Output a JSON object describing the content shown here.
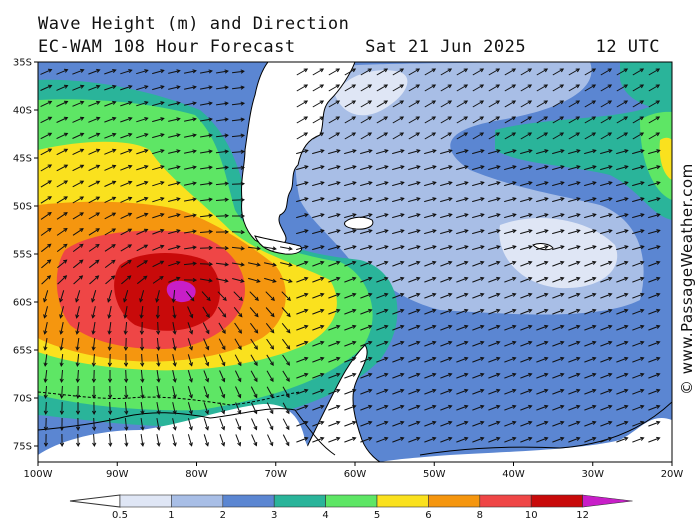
{
  "title": {
    "line1": "Wave Height (m) and Direction",
    "model": "EC-WAM 108 Hour Forecast",
    "date": "Sat 21 Jun 2025",
    "time": "12 UTC"
  },
  "credit": "© www.PassageWeather.com",
  "axes": {
    "lat_labels": [
      "35S",
      "40S",
      "45S",
      "50S",
      "55S",
      "60S",
      "65S",
      "70S",
      "75S"
    ],
    "lon_labels": [
      "100W",
      "90W",
      "80W",
      "70W",
      "60W",
      "50W",
      "40W",
      "30W",
      "20W"
    ]
  },
  "legend": {
    "levels": [
      0.5,
      1,
      2,
      3,
      4,
      5,
      6,
      8,
      10,
      12
    ],
    "labels": [
      "0.5",
      "1",
      "2",
      "3",
      "4",
      "5",
      "6",
      "8",
      "10",
      "12"
    ],
    "colors": [
      "#dfe6f5",
      "#a8bee6",
      "#5b86d2",
      "#2ab49a",
      "#5ee665",
      "#fae11e",
      "#f5960f",
      "#ef4646",
      "#c80a0a",
      "#c81ec8"
    ]
  },
  "colors": {
    "land": "#ffffff",
    "coast": "#000000",
    "arrow": "#111111"
  }
}
